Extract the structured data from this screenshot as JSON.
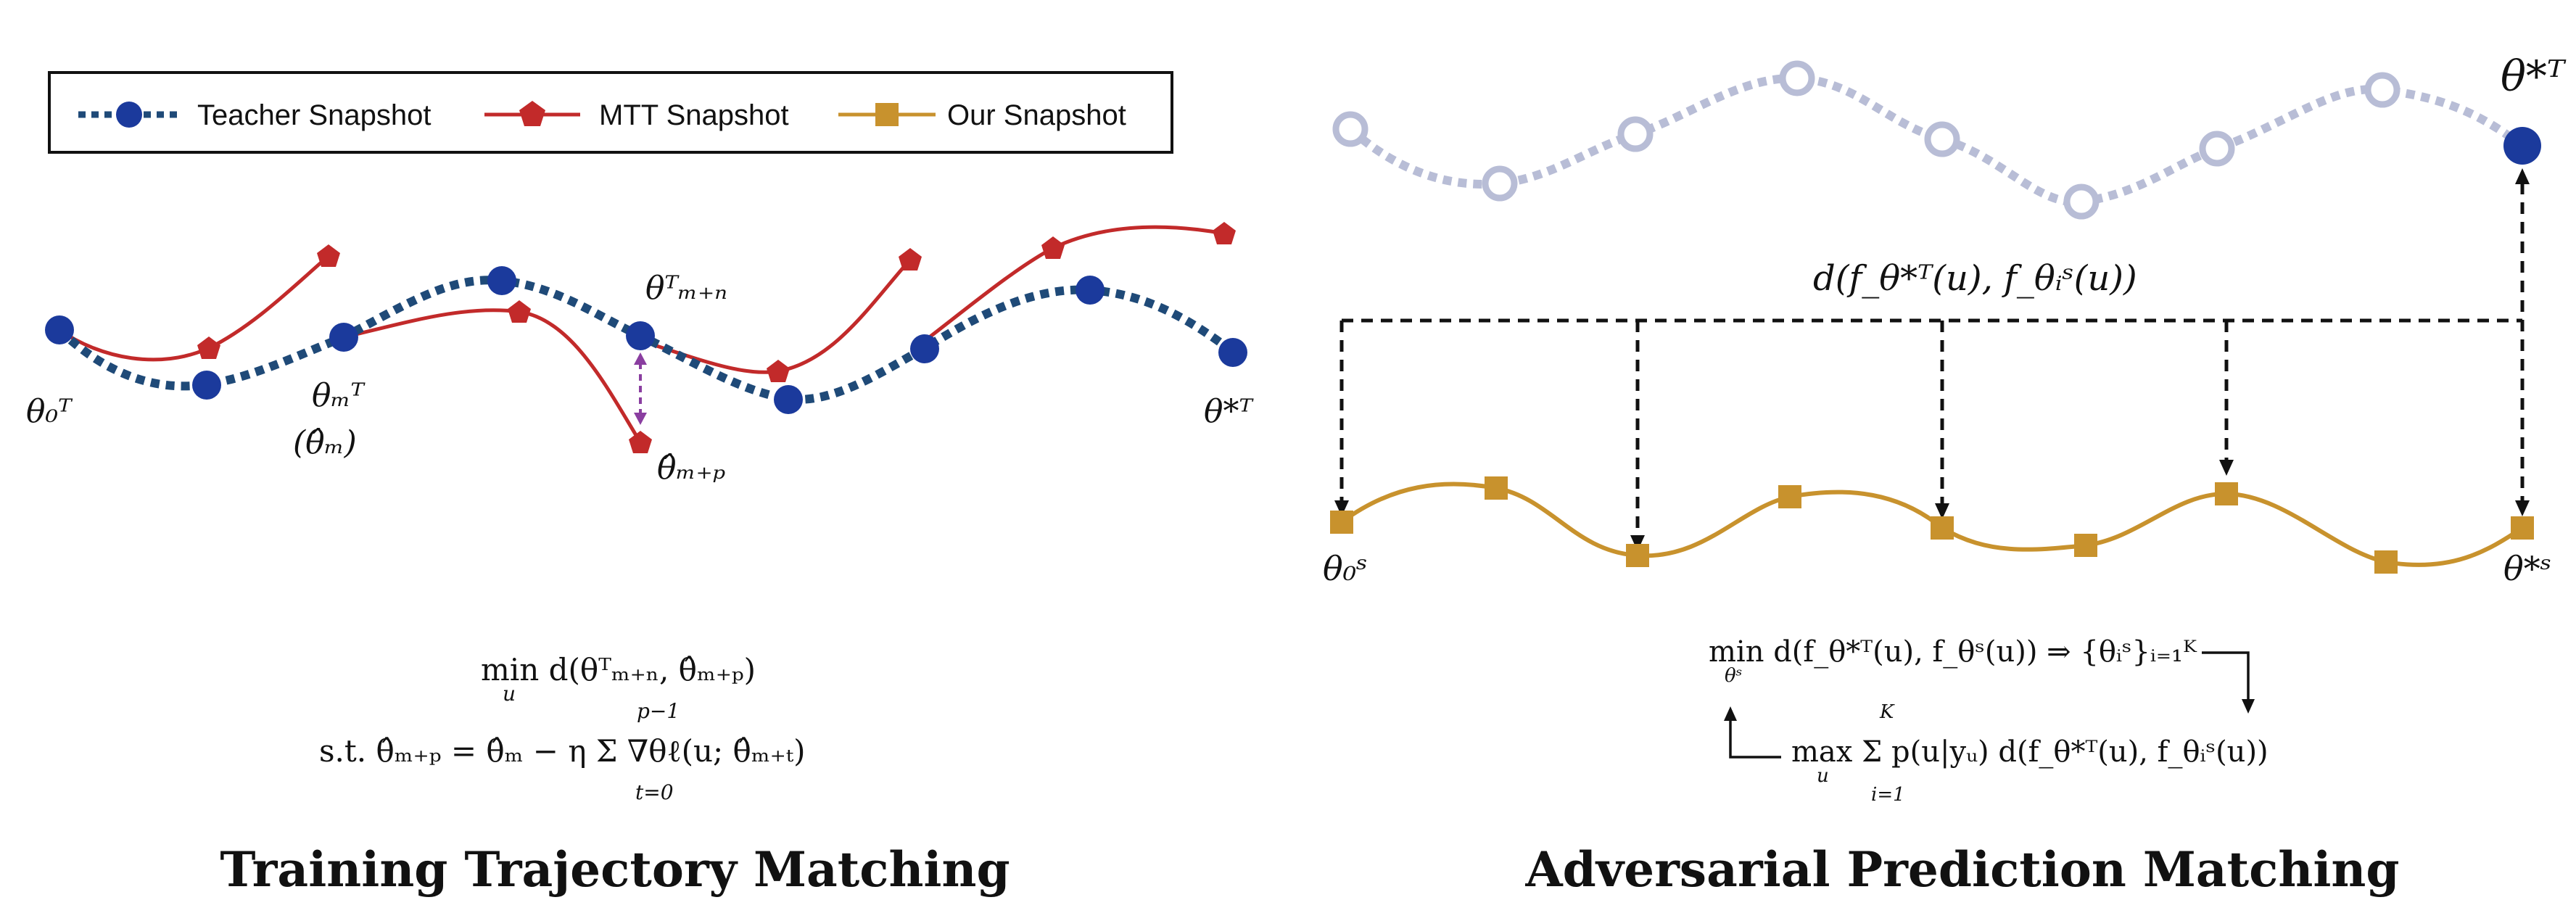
{
  "legend": {
    "teacher_label": "Teacher Snapshot",
    "mtt_label": "MTT Snapshot",
    "ours_label": "Our Snapshot"
  },
  "colors": {
    "teacher": "#1b3a9c",
    "teacher_dash": "#1f4a78",
    "mtt": "#c22a2a",
    "ours": "#c8922d",
    "faded_teacher": "#b8bdd6",
    "arrow_purple": "#8a3ea0",
    "black": "#111111"
  },
  "left_panel": {
    "title": "Training Trajectory Matching",
    "labels": {
      "theta0_T": "θ₀ᵀ",
      "thetam_T": "θₘᵀ",
      "thetam_hat": "(θ̂ₘ)",
      "thetamn_T": "θᵀₘ₊ₙ",
      "thetamp_hat": "θ̂ₘ₊ₚ",
      "thetastar_T": "θ*ᵀ"
    },
    "equation": {
      "line1": "min d(θᵀₘ₊ₙ, θ̂ₘ₊ₚ)",
      "line1_sub": "u",
      "line2": "s.t. θ̂ₘ₊ₚ = θ̂ₘ − η Σ ∇θℓ(u; θ̂ₘ₊ₜ)",
      "sum_upper": "p−1",
      "sum_lower": "t=0"
    }
  },
  "right_panel": {
    "title": "Adversarial Prediction Matching",
    "labels": {
      "thetastar_T": "θ*ᵀ",
      "theta0_S": "θ₀ˢ",
      "thetastar_S": "θ*ˢ",
      "distance": "d(f_θ*ᵀ(u), f_θᵢˢ(u))"
    },
    "equation": {
      "line1": "min d(f_θ*ᵀ(u), f_θˢ(u)) ⇒ {θᵢˢ}ᵢ₌₁ᴷ",
      "line1_sub": "θˢ",
      "line2": "max Σ p(u|yᵤ) d(f_θ*ᵀ(u), f_θᵢˢ(u))",
      "line2_sub": "u",
      "sum_upper": "K",
      "sum_lower": "i=1"
    }
  }
}
